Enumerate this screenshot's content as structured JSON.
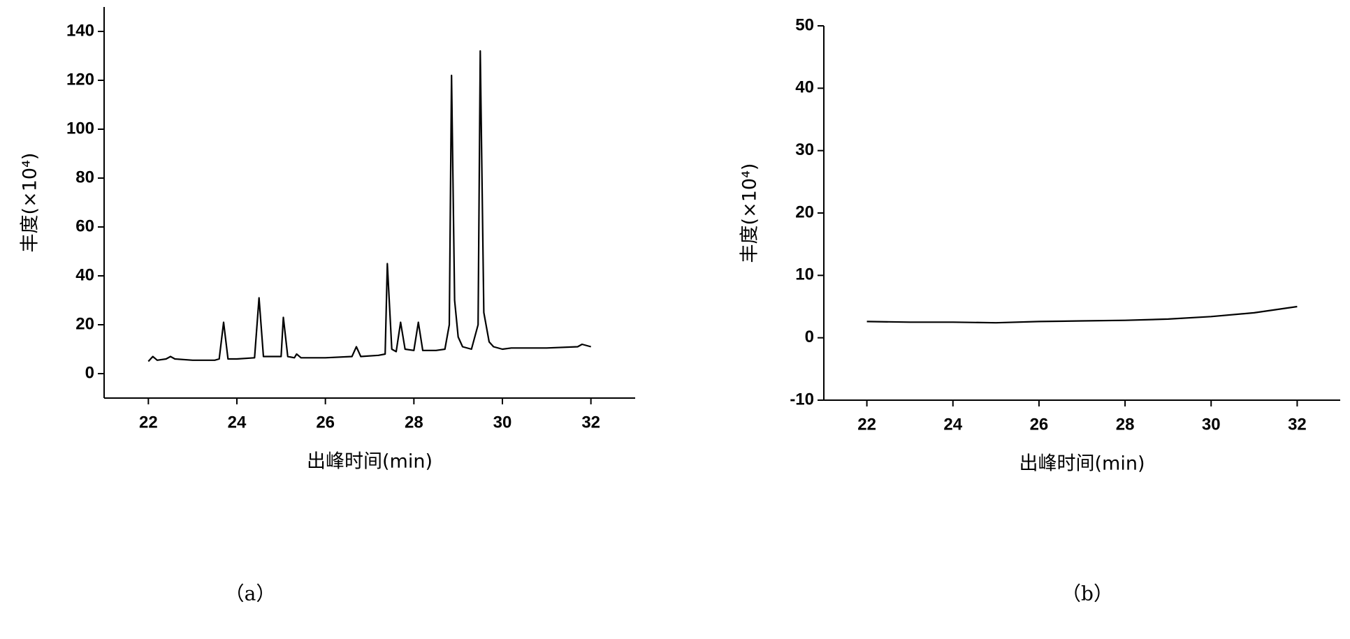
{
  "chart_data": [
    {
      "type": "line",
      "caption": "（a）",
      "xlabel": "出峰时间(min)",
      "ylabel": "丰度(×10⁴)",
      "color": "#000000",
      "x": [
        22,
        22.1,
        22.2,
        22.4,
        22.5,
        22.6,
        23,
        23.5,
        23.6,
        23.7,
        23.8,
        24,
        24.4,
        24.5,
        24.6,
        25,
        25.05,
        25.15,
        25.3,
        25.35,
        25.45,
        26,
        26.6,
        26.7,
        26.8,
        27.2,
        27.35,
        27.4,
        27.5,
        27.6,
        27.7,
        27.8,
        28,
        28.1,
        28.2,
        28.5,
        28.7,
        28.8,
        28.85,
        28.92,
        29,
        29.1,
        29.3,
        29.45,
        29.5,
        29.58,
        29.7,
        29.8,
        30,
        30.2,
        31,
        31.7,
        31.8,
        32
      ],
      "values": [
        5,
        7,
        5.5,
        6,
        7,
        6,
        5.5,
        5.5,
        6,
        21,
        6,
        6,
        6.5,
        31,
        7,
        7,
        23,
        7,
        6.5,
        8,
        6.5,
        6.5,
        7,
        11,
        7,
        7.5,
        8,
        45,
        10,
        9,
        21,
        10,
        9.5,
        21,
        9.5,
        9.5,
        10,
        20,
        122,
        30,
        15,
        11,
        10,
        20,
        132,
        25,
        13,
        11,
        10,
        10.5,
        10.5,
        11,
        12,
        11
      ],
      "xlim": [
        21,
        33
      ],
      "ylim": [
        -10,
        150
      ],
      "xticks": [
        22,
        24,
        26,
        28,
        30,
        32
      ],
      "yticks": [
        0,
        20,
        40,
        60,
        80,
        100,
        120,
        140
      ]
    },
    {
      "type": "line",
      "caption": "（b）",
      "xlabel": "出峰时间(min)",
      "ylabel": "丰度(×10⁴)",
      "color": "#000000",
      "x": [
        22,
        23,
        24,
        25,
        26,
        27,
        28,
        29,
        30,
        31,
        32
      ],
      "values": [
        2.6,
        2.5,
        2.5,
        2.4,
        2.6,
        2.7,
        2.8,
        3.0,
        3.4,
        4.0,
        5.0
      ],
      "xlim": [
        21,
        33
      ],
      "ylim": [
        -10,
        50
      ],
      "xticks": [
        22,
        24,
        26,
        28,
        30,
        32
      ],
      "yticks": [
        -10,
        0,
        10,
        20,
        30,
        40,
        50
      ]
    }
  ]
}
